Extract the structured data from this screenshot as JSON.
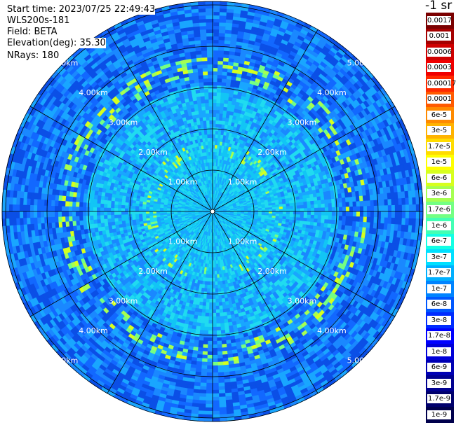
{
  "info": {
    "start_time": "Start time: 2023/07/25 22:49:43",
    "instrument": "WLS200s-181",
    "field": "Field: BETA",
    "elevation": "Elevation(deg): 35.30",
    "nrays": "NRays: 180"
  },
  "units": "-1 sr",
  "range_labels": [
    "1.00km",
    "2.00km",
    "3.00km",
    "4.00km",
    "5.00km"
  ],
  "colorbar": [
    {
      "label": "0.0017",
      "color": "#7a0000"
    },
    {
      "label": "0.001",
      "color": "#a50000"
    },
    {
      "label": "0.0006",
      "color": "#cf0000"
    },
    {
      "label": "0.0003",
      "color": "#f00000"
    },
    {
      "label": "0.00017",
      "color": "#ff2a00"
    },
    {
      "label": "0.0001",
      "color": "#ff5a00"
    },
    {
      "label": "6e-5",
      "color": "#ff8a00"
    },
    {
      "label": "3e-5",
      "color": "#ffb300"
    },
    {
      "label": "1.7e-5",
      "color": "#ffdc00"
    },
    {
      "label": "1e-5",
      "color": "#ffff00"
    },
    {
      "label": "6e-6",
      "color": "#d7ff1e"
    },
    {
      "label": "3e-6",
      "color": "#a6ff51"
    },
    {
      "label": "1.7e-6",
      "color": "#74ff83"
    },
    {
      "label": "1e-6",
      "color": "#43ffb4"
    },
    {
      "label": "6e-7",
      "color": "#13ffe4"
    },
    {
      "label": "3e-7",
      "color": "#00e0ff"
    },
    {
      "label": "1.7e-7",
      "color": "#00b0ff"
    },
    {
      "label": "1e-7",
      "color": "#0084ff"
    },
    {
      "label": "6e-8",
      "color": "#0058ff"
    },
    {
      "label": "3e-8",
      "color": "#002cff"
    },
    {
      "label": "1.7e-8",
      "color": "#0000ff"
    },
    {
      "label": "1e-8",
      "color": "#0000d8"
    },
    {
      "label": "6e-9",
      "color": "#0000b4"
    },
    {
      "label": "3e-9",
      "color": "#000090"
    },
    {
      "label": "1.7e-9",
      "color": "#00006c"
    },
    {
      "label": "1e-9",
      "color": "#00004c"
    }
  ]
}
